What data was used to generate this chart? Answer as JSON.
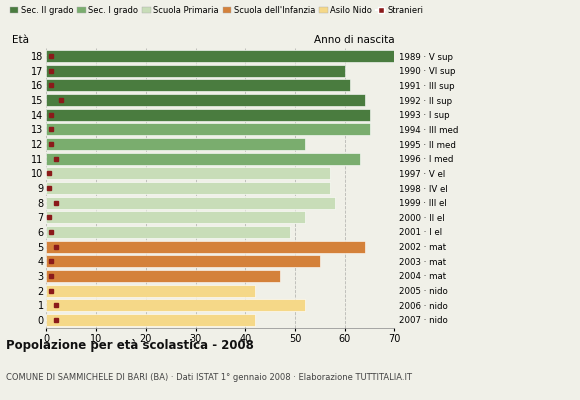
{
  "ages": [
    18,
    17,
    16,
    15,
    14,
    13,
    12,
    11,
    10,
    9,
    8,
    7,
    6,
    5,
    4,
    3,
    2,
    1,
    0
  ],
  "bar_values": [
    70,
    60,
    61,
    64,
    65,
    65,
    52,
    63,
    57,
    57,
    58,
    52,
    49,
    64,
    55,
    47,
    42,
    52,
    42
  ],
  "stranieri": [
    1,
    1,
    1,
    3,
    1,
    1,
    1,
    2,
    0.5,
    0.5,
    2,
    0.5,
    1,
    2,
    1,
    1,
    1,
    2,
    2
  ],
  "bar_colors": [
    "#4a7c3f",
    "#4a7c3f",
    "#4a7c3f",
    "#4a7c3f",
    "#4a7c3f",
    "#7aad6e",
    "#7aad6e",
    "#7aad6e",
    "#c8ddb8",
    "#c8ddb8",
    "#c8ddb8",
    "#c8ddb8",
    "#c8ddb8",
    "#d4813a",
    "#d4813a",
    "#d4813a",
    "#f5d888",
    "#f5d888",
    "#f5d888"
  ],
  "right_labels": [
    "1989 · V sup",
    "1990 · VI sup",
    "1991 · III sup",
    "1992 · II sup",
    "1993 · I sup",
    "1994 · III med",
    "1995 · II med",
    "1996 · I med",
    "1997 · V el",
    "1998 · IV el",
    "1999 · III el",
    "2000 · II el",
    "2001 · I el",
    "2002 · mat",
    "2003 · mat",
    "2004 · mat",
    "2005 · nido",
    "2006 · nido",
    "2007 · nido"
  ],
  "legend_labels": [
    "Sec. II grado",
    "Sec. I grado",
    "Scuola Primaria",
    "Scuola dell'Infanzia",
    "Asilo Nido",
    "Stranieri"
  ],
  "legend_colors": [
    "#4a7c3f",
    "#7aad6e",
    "#c8ddb8",
    "#d4813a",
    "#f5d888",
    "#8b1a1a"
  ],
  "title": "Popolazione per età scolastica - 2008",
  "subtitle": "COMUNE DI SAMMICHELE DI BARI (BA) · Dati ISTAT 1° gennaio 2008 · Elaborazione TUTTITALIA.IT",
  "xlabel_eta": "Età",
  "xlabel_anno": "Anno di nascita",
  "xlim": [
    0,
    70
  ],
  "xticks": [
    0,
    10,
    20,
    30,
    40,
    50,
    60,
    70
  ],
  "stranieri_color": "#8b1a1a",
  "bar_height": 0.82,
  "bg_color": "#f0f0e8",
  "plot_bg": "#f0f0e8"
}
